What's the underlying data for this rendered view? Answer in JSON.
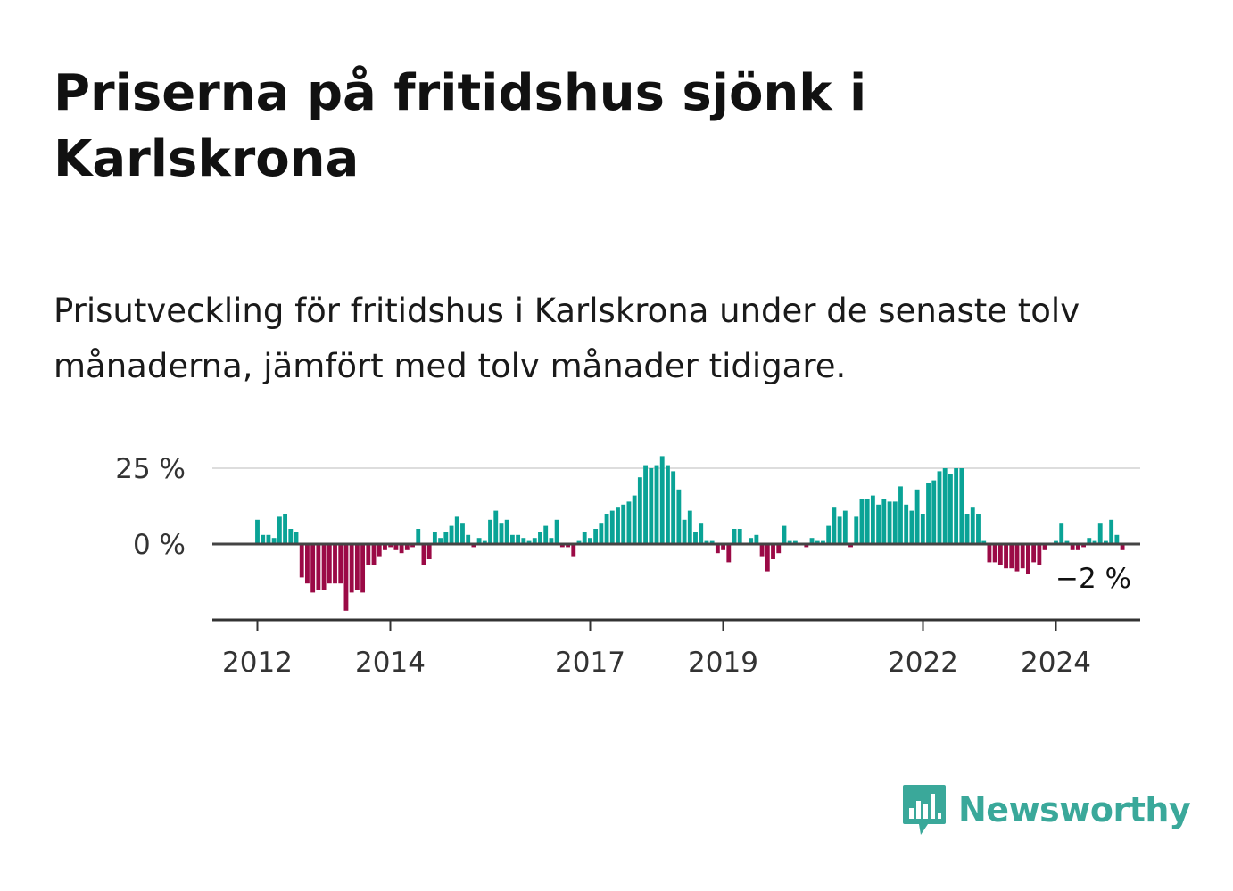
{
  "title": "Priserna på fritidshus sjönk i Karlskrona",
  "subtitle": "Prisutveckling för fritidshus i Karlskrona under de senaste tolv månaderna, jämfört med tolv månader tidigare.",
  "logo_text": "Newsworthy",
  "colors": {
    "positive": "#0aa396",
    "negative": "#9b0a46",
    "grid": "#dddddd",
    "axis": "#444444",
    "logo": "#3aa89a"
  },
  "chart_data": {
    "type": "bar",
    "x_start": "2012-01",
    "y_ticks": [
      {
        "value": 25,
        "label": "25 %"
      },
      {
        "value": 0,
        "label": "0 %"
      }
    ],
    "x_ticks": [
      "2012",
      "2014",
      "2017",
      "2019",
      "2022",
      "2024"
    ],
    "ylim": [
      -25,
      30
    ],
    "last_label": "−2 %",
    "values": [
      8,
      3,
      3,
      2,
      9,
      10,
      5,
      4,
      -11,
      -13,
      -16,
      -15,
      -15,
      -13,
      -13,
      -13,
      -22,
      -16,
      -15,
      -16,
      -7,
      -7,
      -4,
      -2,
      -1,
      -2,
      -3,
      -2,
      -1,
      5,
      -7,
      -5,
      4,
      2,
      4,
      6,
      9,
      7,
      3,
      -1,
      2,
      1,
      8,
      11,
      7,
      8,
      3,
      3,
      2,
      1,
      2,
      4,
      6,
      2,
      8,
      -1,
      -1,
      -4,
      1,
      4,
      2,
      5,
      7,
      10,
      11,
      12,
      13,
      14,
      16,
      22,
      26,
      25,
      26,
      29,
      26,
      24,
      18,
      8,
      11,
      4,
      7,
      1,
      1,
      -3,
      -2,
      -6,
      5,
      5,
      0,
      2,
      3,
      -4,
      -9,
      -5,
      -3,
      6,
      1,
      1,
      0,
      -1,
      2,
      1,
      1,
      6,
      12,
      9,
      11,
      -1,
      9,
      15,
      15,
      16,
      13,
      15,
      14,
      14,
      19,
      13,
      11,
      18,
      10,
      20,
      21,
      24,
      25,
      23,
      25,
      25,
      10,
      12,
      10,
      1,
      -6,
      -6,
      -7,
      -8,
      -8,
      -9,
      -8,
      -10,
      -6,
      -7,
      -2,
      0,
      1,
      7,
      1,
      -2,
      -2,
      -1,
      2,
      1,
      7,
      1,
      8,
      3,
      -2
    ]
  }
}
